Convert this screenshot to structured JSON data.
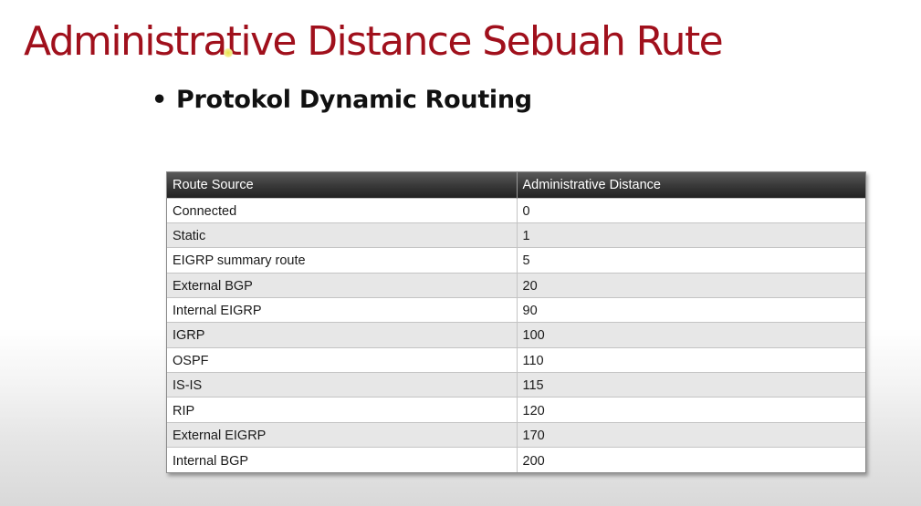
{
  "slide": {
    "title": "Administrative Distance Sebuah Rute",
    "bullet_symbol": "•",
    "bullet_text": "Protokol Dynamic Routing"
  },
  "table": {
    "headers": [
      "Route Source",
      "Administrative Distance"
    ],
    "rows": [
      [
        "Connected",
        "0"
      ],
      [
        "Static",
        "1"
      ],
      [
        "EIGRP summary route",
        "5"
      ],
      [
        "External BGP",
        "20"
      ],
      [
        "Internal EIGRP",
        "90"
      ],
      [
        "IGRP",
        "100"
      ],
      [
        "OSPF",
        "110"
      ],
      [
        "IS-IS",
        "115"
      ],
      [
        "RIP",
        "120"
      ],
      [
        "External EIGRP",
        "170"
      ],
      [
        "Internal BGP",
        "200"
      ]
    ]
  },
  "colors": {
    "title": "#a0101c",
    "header_bg": "#3a3a3a",
    "row_alt": "#e7e7e7"
  }
}
